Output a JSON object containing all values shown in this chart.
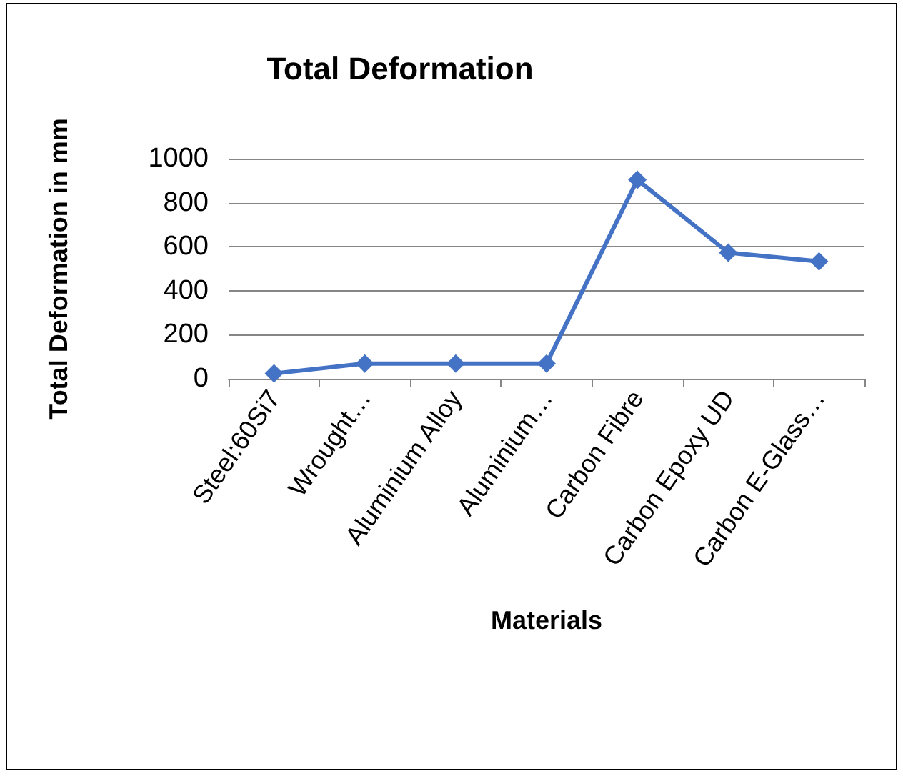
{
  "chart_data": {
    "type": "line",
    "title": "Total Deformation",
    "xlabel": "Materials",
    "ylabel": "Total Deformation in mm",
    "categories": [
      "Steel:60Si7",
      "Wrought…",
      "Aluminium Alloy",
      "Aluminium…",
      "Carbon Fibre",
      "Carbon Epoxy UD",
      "Carbon E-Glass…"
    ],
    "series": [
      {
        "color": "#4472c4",
        "values": [
          24,
          69,
          69,
          69,
          904,
          573,
          533
        ]
      }
    ],
    "ylim": [
      0,
      1000
    ],
    "yticks": [
      0,
      200,
      400,
      600,
      800,
      1000
    ],
    "grid": "y",
    "marker": "diamond",
    "line_style": "solid"
  }
}
